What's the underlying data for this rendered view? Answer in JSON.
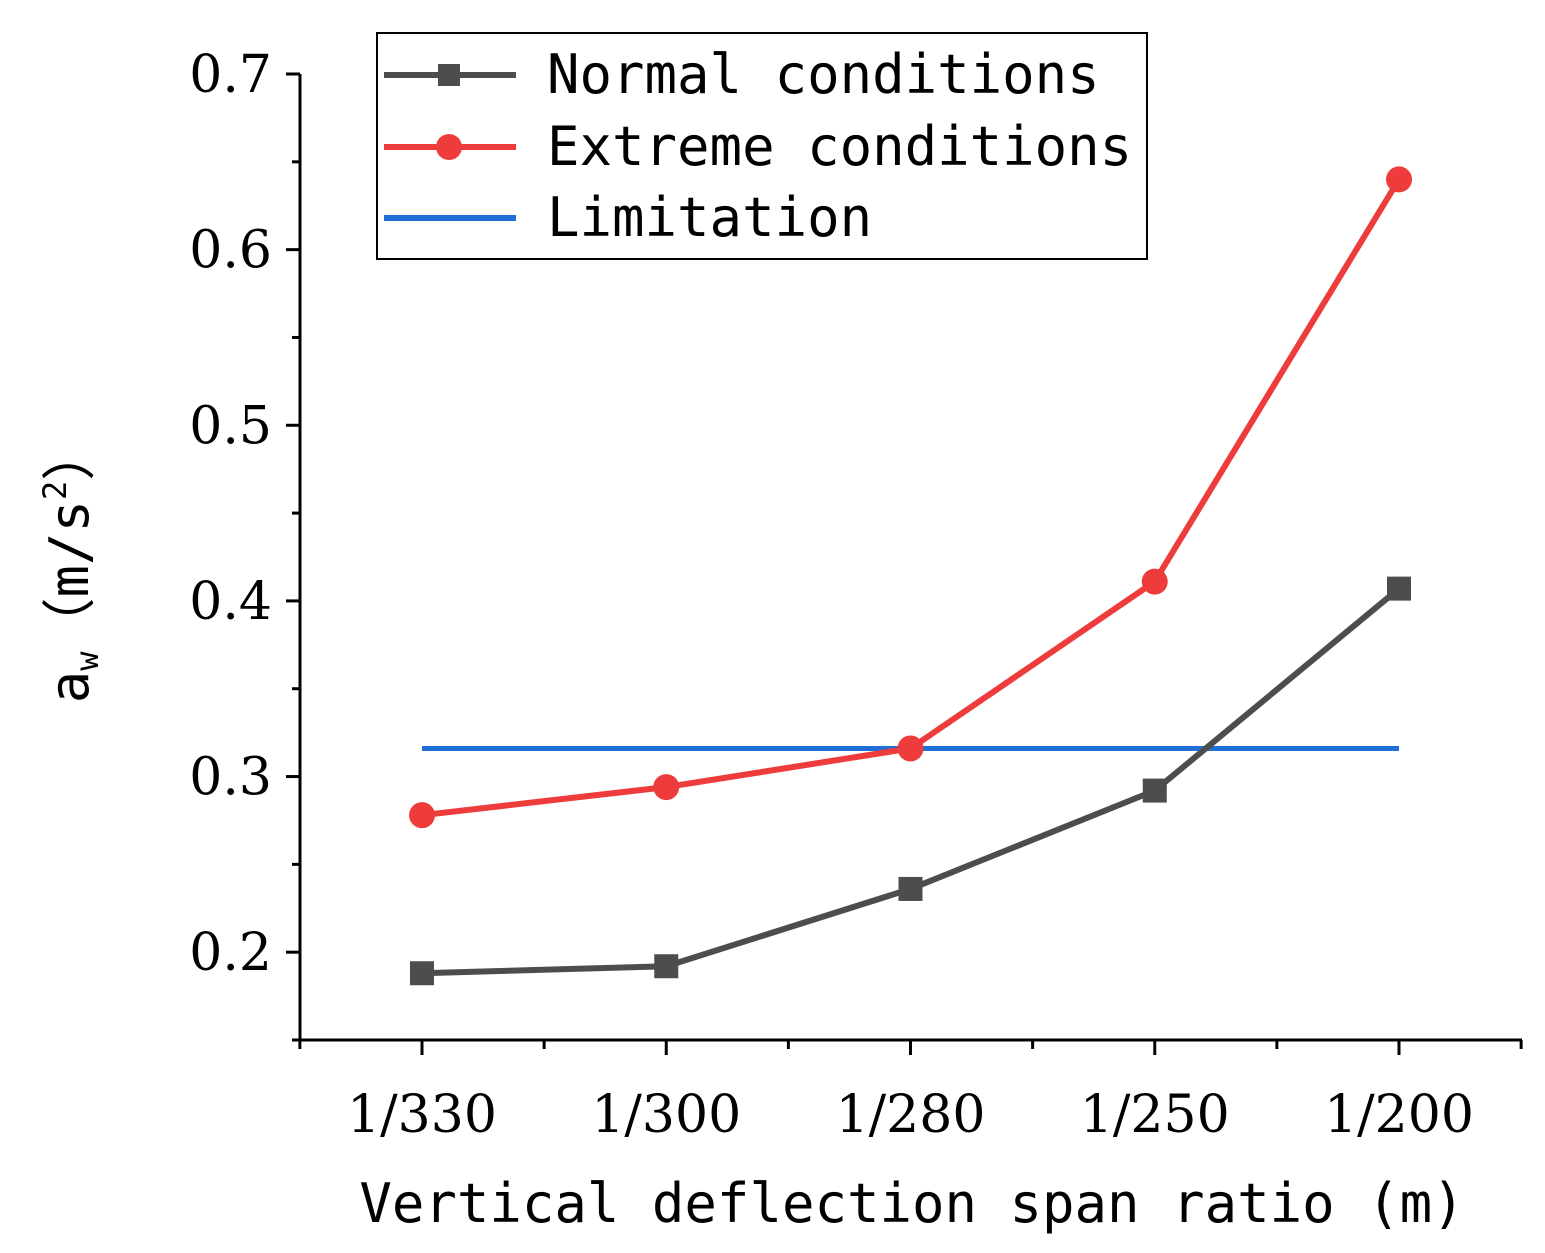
{
  "chart_data": {
    "type": "line",
    "title": "",
    "xlabel": "Vertical deflection span ratio (m)",
    "ylabel_main": "a",
    "ylabel_sub": "w",
    "ylabel_unit": "（m/s",
    "ylabel_sup": "2",
    "ylabel_close": "）",
    "categories": [
      "1/330",
      "1/300",
      "1/280",
      "1/250",
      "1/200"
    ],
    "ylim": [
      0.15,
      0.7
    ],
    "yticks": [
      0.2,
      0.3,
      0.4,
      0.5,
      0.6,
      0.7
    ],
    "ytick_labels": [
      "0.2",
      "0.3",
      "0.4",
      "0.5",
      "0.6",
      "0.7"
    ],
    "grid": false,
    "legend_position": "top-left",
    "series": [
      {
        "name": "Normal conditions",
        "color": "#4d4d4d",
        "marker": "square",
        "values": [
          0.188,
          0.192,
          0.236,
          0.292,
          0.407
        ]
      },
      {
        "name": "Extreme conditions",
        "color": "#ee3b3b",
        "marker": "circle",
        "values": [
          0.278,
          0.294,
          0.316,
          0.411,
          0.64
        ]
      },
      {
        "name": "Limitation",
        "color": "#1f6fd6",
        "marker": "none",
        "values": [
          0.316,
          0.316,
          0.316,
          0.316,
          0.316
        ]
      }
    ]
  }
}
